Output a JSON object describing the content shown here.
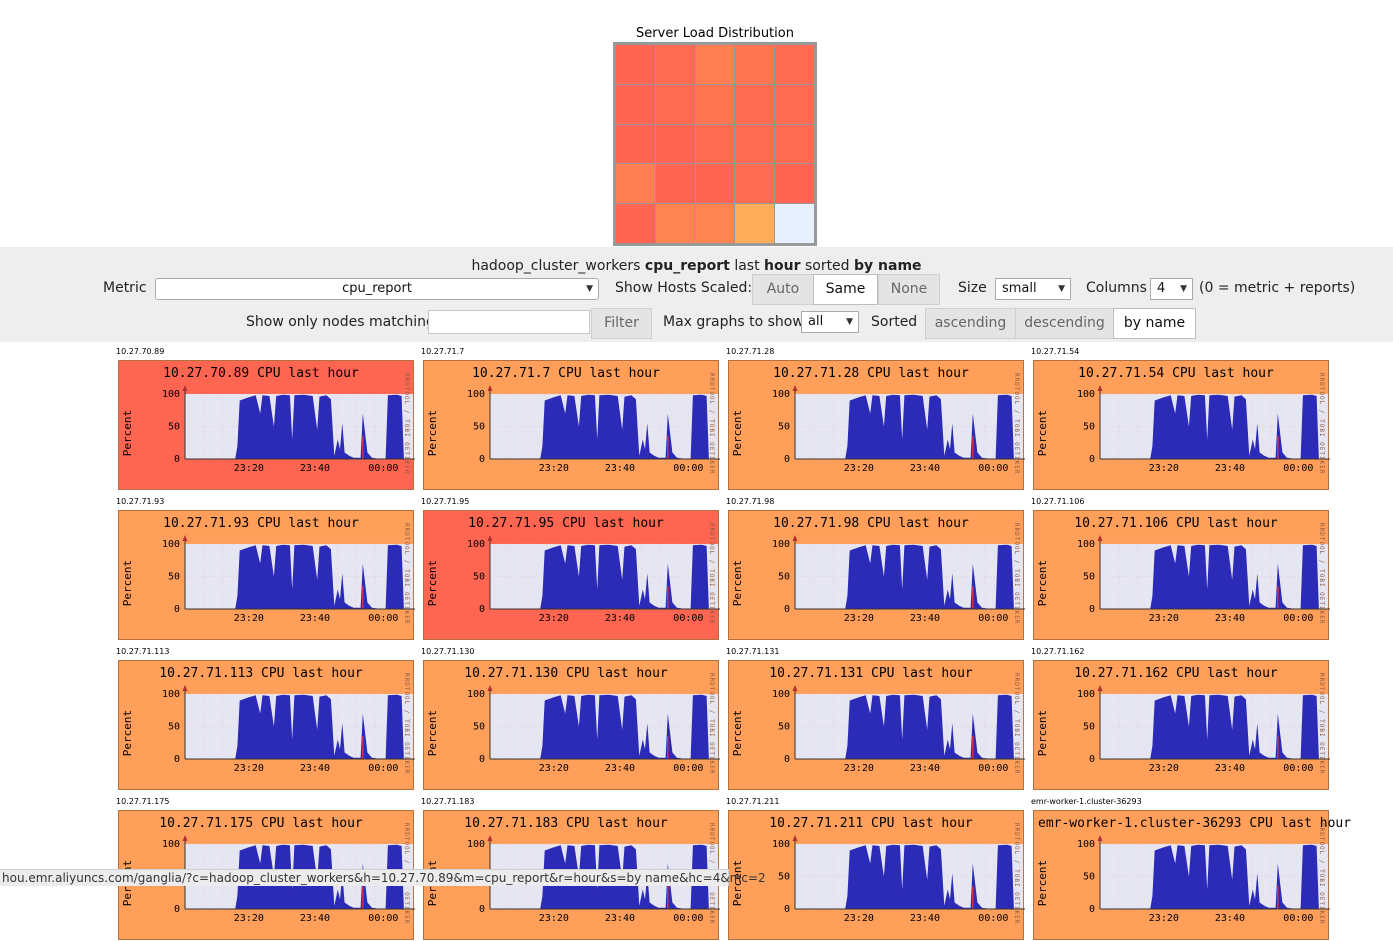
{
  "heatmap": {
    "title": "Server Load Distribution",
    "cells": [
      "#ff6552",
      "#ff6a52",
      "#ff7f52",
      "#ff7552",
      "#ff6a52",
      "#ff6552",
      "#ff6a52",
      "#ff7552",
      "#ff6a52",
      "#ff6a52",
      "#ff6552",
      "#ff6552",
      "#ff6a52",
      "#ff6a52",
      "#ff6a52",
      "#ff7f52",
      "#ff6552",
      "#ff6552",
      "#ff6a52",
      "#ff6552",
      "#ff6552",
      "#ff8452",
      "#ff8452",
      "#ffad5a",
      "#e8f0ff"
    ]
  },
  "summary": {
    "cluster": "hadoop_cluster_workers",
    "metric": "cpu_report",
    "t1": "last",
    "range": "hour",
    "t2": "sorted",
    "sort": "by name"
  },
  "controls": {
    "metric_label": "Metric",
    "metric_value": "cpu_report",
    "scaled_label": "Show Hosts Scaled:",
    "scaled_auto": "Auto",
    "scaled_same": "Same",
    "scaled_none": "None",
    "size_label": "Size",
    "size_value": "small",
    "columns_label": "Columns",
    "columns_value": "4",
    "columns_note": "(0 = metric + reports)",
    "filter_label": "Show only nodes matching",
    "filter_value": "",
    "filter_button": "Filter",
    "max_label": "Max graphs to show",
    "max_value": "all",
    "sorted_label": "Sorted",
    "sort_asc": "ascending",
    "sort_desc": "descending",
    "sort_name": "by name"
  },
  "graph_common": {
    "y_axis_label": "Percent",
    "y_ticks": [
      "100",
      "50",
      "0"
    ],
    "x_ticks": [
      "23:20",
      "23:40",
      "00:00"
    ],
    "watermark": "RRDTOOL / TOBI OETIKER",
    "color_hot": "#ff6652",
    "color_warm": "#ff9f5a",
    "series_color": "#2b2bb8",
    "spike_color": "#ff3030"
  },
  "graphs": [
    {
      "host": "10.27.70.89",
      "title": "10.27.70.89 CPU last hour",
      "heat": "hot"
    },
    {
      "host": "10.27.71.7",
      "title": "10.27.71.7 CPU last hour",
      "heat": "warm"
    },
    {
      "host": "10.27.71.28",
      "title": "10.27.71.28 CPU last hour",
      "heat": "warm"
    },
    {
      "host": "10.27.71.54",
      "title": "10.27.71.54 CPU last hour",
      "heat": "warm"
    },
    {
      "host": "10.27.71.93",
      "title": "10.27.71.93 CPU last hour",
      "heat": "warm"
    },
    {
      "host": "10.27.71.95",
      "title": "10.27.71.95 CPU last hour",
      "heat": "hot"
    },
    {
      "host": "10.27.71.98",
      "title": "10.27.71.98 CPU last hour",
      "heat": "warm"
    },
    {
      "host": "10.27.71.106",
      "title": "10.27.71.106 CPU last hour",
      "heat": "warm"
    },
    {
      "host": "10.27.71.113",
      "title": "10.27.71.113 CPU last hour",
      "heat": "warm"
    },
    {
      "host": "10.27.71.130",
      "title": "10.27.71.130 CPU last hour",
      "heat": "warm"
    },
    {
      "host": "10.27.71.131",
      "title": "10.27.71.131 CPU last hour",
      "heat": "warm"
    },
    {
      "host": "10.27.71.162",
      "title": "10.27.71.162 CPU last hour",
      "heat": "warm"
    },
    {
      "host": "10.27.71.175",
      "title": "10.27.71.175 CPU last hour",
      "heat": "warm"
    },
    {
      "host": "10.27.71.183",
      "title": "10.27.71.183 CPU last hour",
      "heat": "warm"
    },
    {
      "host": "10.27.71.211",
      "title": "10.27.71.211 CPU last hour",
      "heat": "warm"
    },
    {
      "host": "emr-worker-1.cluster-36293",
      "title": "emr-worker-1.cluster-36293 CPU last hour",
      "heat": "warm"
    }
  ],
  "statusbar": {
    "url": "hou.emr.aliyuncs.com/ganglia/?c=hadoop_cluster_workers&h=10.27.70.89&m=cpu_report&r=hour&s=by name&hc=4&mc=2"
  }
}
